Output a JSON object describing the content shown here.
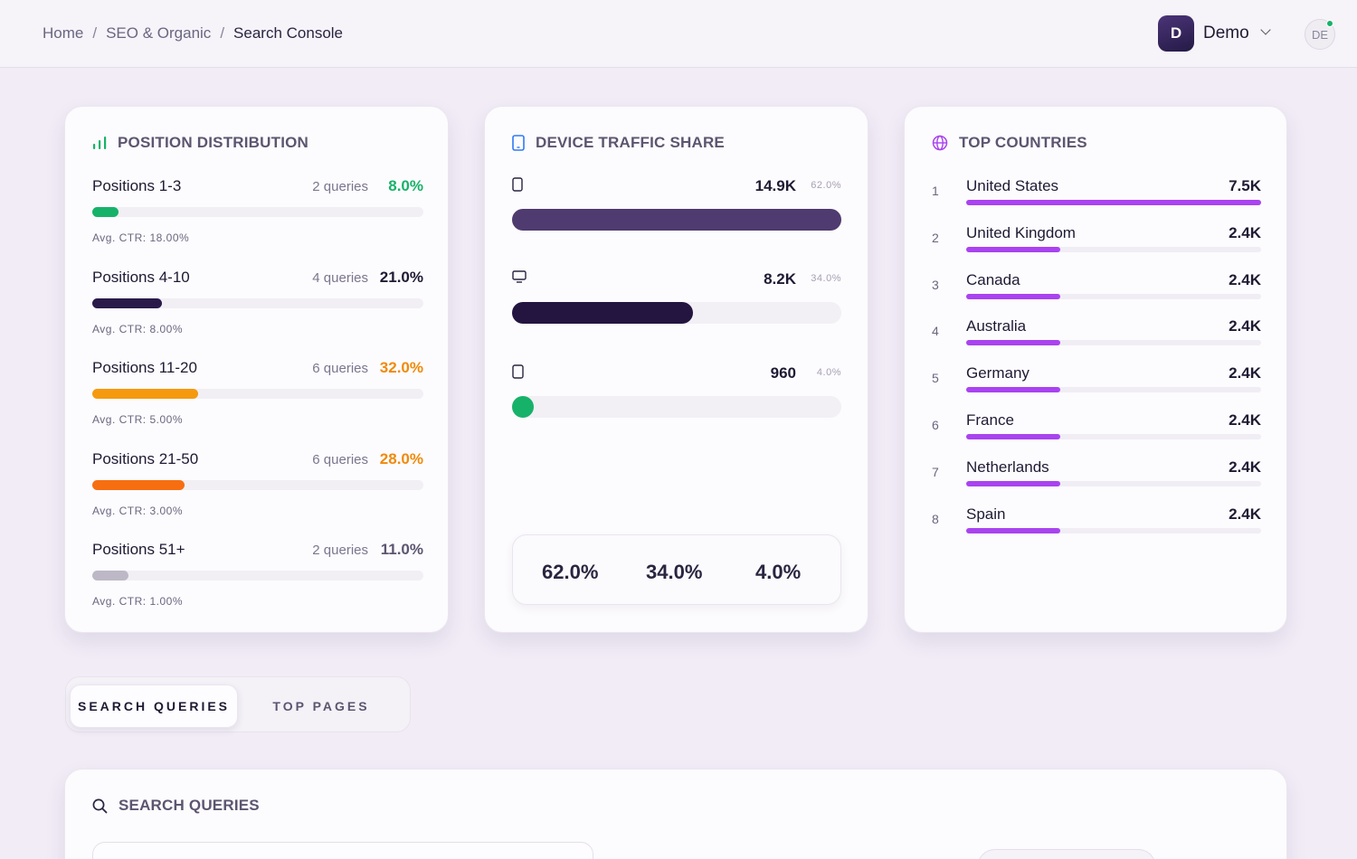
{
  "header": {
    "breadcrumb": [
      "Home",
      "SEO & Organic",
      "Search Console"
    ],
    "workspace": {
      "initial": "D",
      "name": "Demo"
    },
    "user_initials": "DE"
  },
  "position_distribution": {
    "title": "POSITION DISTRIBUTION",
    "rows": [
      {
        "label": "Positions 1-3",
        "queries": "2 queries",
        "pct": "8.0%",
        "share": 0.08,
        "ctr": "Avg. CTR: 18.00%",
        "color": "#17b26a"
      },
      {
        "label": "Positions 4-10",
        "queries": "4 queries",
        "pct": "21.0%",
        "share": 0.21,
        "ctr": "Avg. CTR: 8.00%",
        "color": "#2a1a4a"
      },
      {
        "label": "Positions 11-20",
        "queries": "6 queries",
        "pct": "32.0%",
        "share": 0.32,
        "ctr": "Avg. CTR: 5.00%",
        "color": "#f59a0f"
      },
      {
        "label": "Positions 21-50",
        "queries": "6 queries",
        "pct": "28.0%",
        "share": 0.28,
        "ctr": "Avg. CTR: 3.00%",
        "color": "#f76e10"
      },
      {
        "label": "Positions 51+",
        "queries": "2 queries",
        "pct": "11.0%",
        "share": 0.11,
        "ctr": "Avg. CTR: 1.00%",
        "color": "#bdb8c6"
      }
    ],
    "pct_colors": [
      "#17b26a",
      "#1f1a33",
      "#f08a0a",
      "#f08a0a",
      "#5c5570"
    ]
  },
  "device_traffic": {
    "title": "DEVICE TRAFFIC SHARE",
    "rows": [
      {
        "device_icon": "mobile-icon",
        "value": "14.9K",
        "pct": "62.0%",
        "share": 1.0,
        "color": "#4f3b6f"
      },
      {
        "device_icon": "desktop-icon",
        "value": "8.2K",
        "pct": "34.0%",
        "share": 0.55,
        "color": "#231540"
      },
      {
        "device_icon": "tablet-icon",
        "value": "960",
        "pct": "4.0%",
        "share": 0.065,
        "color": "#17b26a"
      }
    ],
    "summary": [
      "62.0%",
      "34.0%",
      "4.0%"
    ]
  },
  "top_countries": {
    "title": "TOP COUNTRIES",
    "rows": [
      {
        "rank": "1",
        "name": "United States",
        "value": "7.5K",
        "share": 1.0
      },
      {
        "rank": "2",
        "name": "United Kingdom",
        "value": "2.4K",
        "share": 0.32
      },
      {
        "rank": "3",
        "name": "Canada",
        "value": "2.4K",
        "share": 0.32
      },
      {
        "rank": "4",
        "name": "Australia",
        "value": "2.4K",
        "share": 0.32
      },
      {
        "rank": "5",
        "name": "Germany",
        "value": "2.4K",
        "share": 0.32
      },
      {
        "rank": "6",
        "name": "France",
        "value": "2.4K",
        "share": 0.32
      },
      {
        "rank": "7",
        "name": "Netherlands",
        "value": "2.4K",
        "share": 0.32
      },
      {
        "rank": "8",
        "name": "Spain",
        "value": "2.4K",
        "share": 0.32
      }
    ]
  },
  "tabs": {
    "active": "SEARCH QUERIES",
    "inactive": "TOP PAGES"
  },
  "search_section": {
    "title": "SEARCH QUERIES"
  },
  "colors": {
    "accent": "#a943f0",
    "brand": "#2a1a4a",
    "good": "#17b26a",
    "warn": "#f08a0a"
  }
}
